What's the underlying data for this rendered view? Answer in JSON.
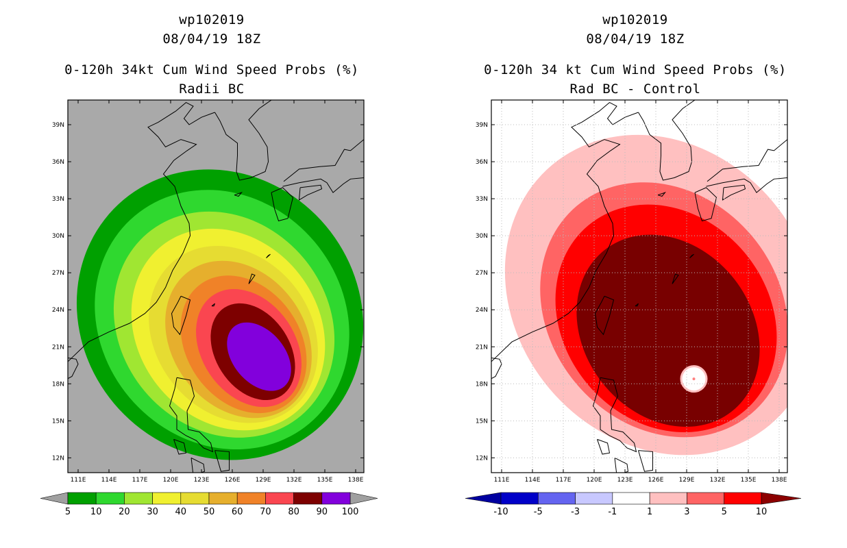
{
  "panels": [
    {
      "id": "left",
      "storm_id": "wp102019",
      "datetime": "08/04/19 18Z",
      "title": "0-120h 34kt Cum Wind Speed Probs (%)",
      "subtitle": "Radii BC",
      "background": "#a9a9a9",
      "colorbar": {
        "labels": [
          "5",
          "10",
          "20",
          "30",
          "40",
          "50",
          "60",
          "70",
          "80",
          "90",
          "100"
        ],
        "colors": [
          "#00a000",
          "#2fd82f",
          "#a0e632",
          "#f0f030",
          "#e6dc32",
          "#e6af2d",
          "#f08228",
          "#fa4650",
          "#7d0000",
          "#8200dc"
        ],
        "end_color": "#a0a0a0"
      },
      "contours": [
        {
          "level": "5",
          "color": "#00a000"
        },
        {
          "level": "10",
          "color": "#2fd82f"
        },
        {
          "level": "20",
          "color": "#a0e632"
        },
        {
          "level": "30",
          "color": "#f0f030"
        },
        {
          "level": "40",
          "color": "#e6dc32"
        },
        {
          "level": "50",
          "color": "#e6af2d"
        },
        {
          "level": "60",
          "color": "#f08228"
        },
        {
          "level": "70",
          "color": "#fa4650"
        },
        {
          "level": "80",
          "color": "#7d0000"
        },
        {
          "level": "90",
          "color": "#8200dc"
        }
      ]
    },
    {
      "id": "right",
      "storm_id": "wp102019",
      "datetime": "08/04/19 18Z",
      "title": "0-120h 34 kt Cum Wind Speed Probs (%)",
      "subtitle": "Rad BC - Control",
      "background": "#ffffff",
      "colorbar": {
        "labels": [
          "-10",
          "-5",
          "-3",
          "-1",
          "1",
          "3",
          "5",
          "10"
        ],
        "colors": [
          "#0000c8",
          "#6464f0",
          "#c8c8ff",
          "#ffffff",
          "#ffc0c0",
          "#ff6464",
          "#ff0000"
        ],
        "start_color": "#0000a0",
        "end_color": "#8c0000"
      },
      "contours": [
        {
          "level": "1",
          "color": "#ffc0c0"
        },
        {
          "level": "3",
          "color": "#ff6464"
        },
        {
          "level": "5",
          "color": "#ff0000"
        },
        {
          "level": "10",
          "color": "#780000"
        }
      ]
    }
  ],
  "lon_labels": [
    "111E",
    "114E",
    "117E",
    "120E",
    "123E",
    "126E",
    "129E",
    "132E",
    "135E",
    "138E"
  ],
  "lat_labels": [
    "39N",
    "36N",
    "33N",
    "30N",
    "27N",
    "24N",
    "21N",
    "18N",
    "15N",
    "12N"
  ]
}
